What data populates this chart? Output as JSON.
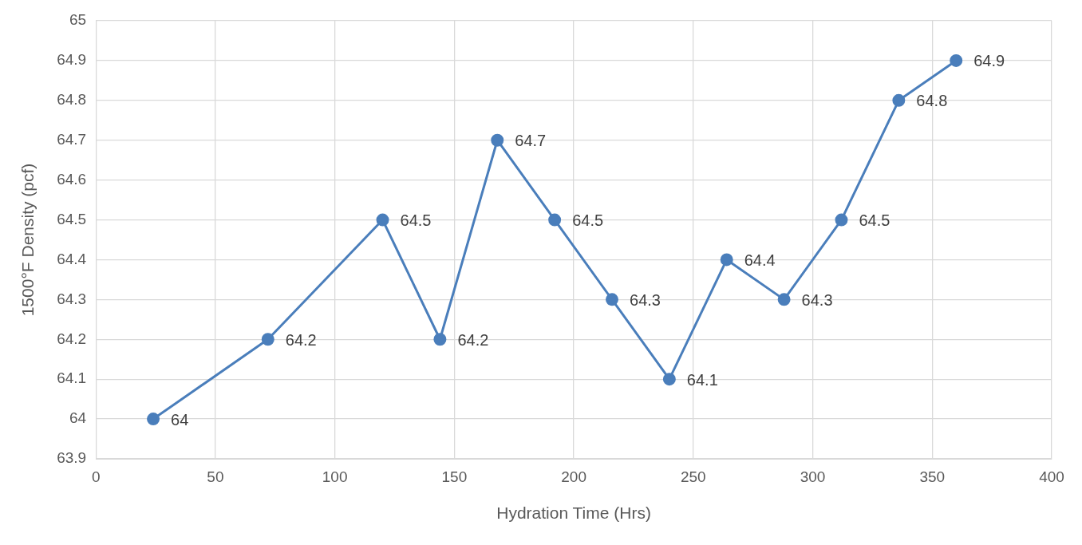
{
  "chart_data": {
    "type": "line",
    "xlabel": "Hydration Time (Hrs)",
    "ylabel": "1500°F Density (pcf)",
    "x": [
      24,
      72,
      120,
      144,
      168,
      192,
      216,
      240,
      264,
      288,
      312,
      336,
      360
    ],
    "series": [
      {
        "color": "#4a7ebb",
        "values": [
          64,
          64.2,
          64.5,
          64.2,
          64.7,
          64.5,
          64.3,
          64.1,
          64.4,
          64.3,
          64.5,
          64.8,
          64.9
        ]
      }
    ],
    "xlim": [
      0,
      400
    ],
    "xticks": [
      0,
      50,
      100,
      150,
      200,
      250,
      300,
      350,
      400
    ],
    "ylim": [
      63.9,
      65
    ],
    "yticks": [
      63.9,
      64,
      64.1,
      64.2,
      64.3,
      64.4,
      64.5,
      64.6,
      64.7,
      64.8,
      64.9,
      65
    ],
    "grid": true,
    "marker": "circle",
    "line_style": "solid",
    "data_labels": true
  }
}
